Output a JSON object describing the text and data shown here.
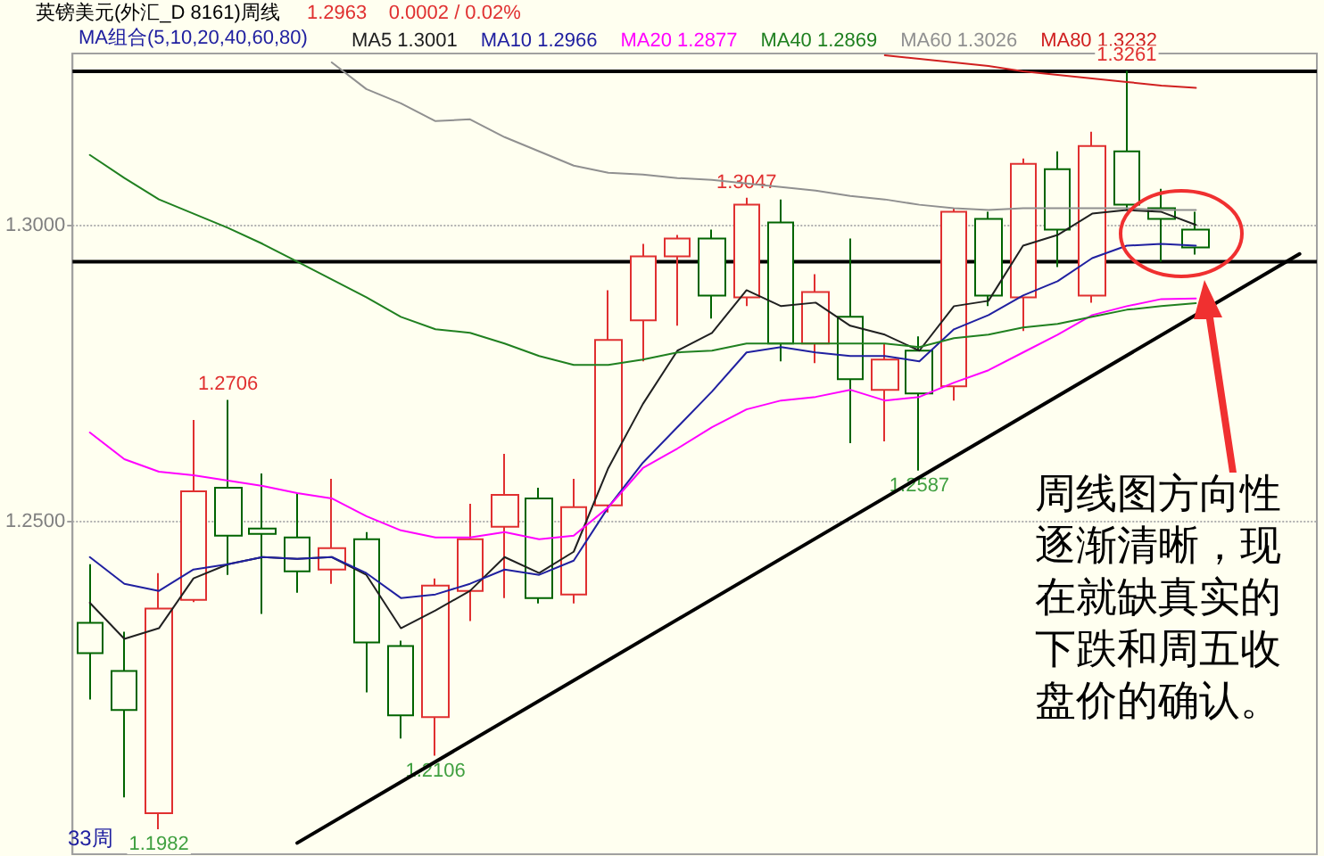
{
  "chart_data": {
    "type": "candlestick",
    "title": "英镑美元(外汇_D 8161)周线",
    "subtitle": "1.2963    0.0002 / 0.02%",
    "legend_title": "MA组合(5,10,20,40,60,80)",
    "categories": [
      null,
      null,
      null,
      null,
      null,
      null,
      null,
      null,
      null,
      null,
      null,
      null,
      null,
      null,
      null,
      null,
      null,
      null,
      null,
      null,
      null,
      null,
      null,
      null,
      null,
      null,
      null,
      null,
      null,
      null,
      null,
      null,
      null,
      null,
      null,
      null
    ],
    "ohlc": [
      [
        1.233,
        1.2429,
        1.2201,
        1.2279
      ],
      [
        1.2249,
        1.2315,
        1.2036,
        1.2183
      ],
      [
        1.2009,
        1.2414,
        1.1982,
        1.2354
      ],
      [
        1.2369,
        1.2672,
        1.2365,
        1.2552
      ],
      [
        1.2558,
        1.2706,
        1.2411,
        1.2477
      ],
      [
        1.2489,
        1.2582,
        1.2345,
        1.248
      ],
      [
        1.2474,
        1.2549,
        1.2381,
        1.2417
      ],
      [
        1.242,
        1.2573,
        1.2396,
        1.2456
      ],
      [
        1.2471,
        1.2483,
        1.2213,
        1.2297
      ],
      [
        1.2291,
        1.23,
        1.2135,
        1.2174
      ],
      [
        1.2171,
        1.2405,
        1.2106,
        1.2393
      ],
      [
        1.2384,
        1.2531,
        1.2333,
        1.2471
      ],
      [
        1.2492,
        1.2615,
        1.2372,
        1.2546
      ],
      [
        1.254,
        1.2558,
        1.2363,
        1.2372
      ],
      [
        1.2378,
        1.2573,
        1.2363,
        1.2525
      ],
      [
        1.2528,
        1.2891,
        1.2516,
        1.2807
      ],
      [
        1.284,
        1.2969,
        1.2771,
        1.2948
      ],
      [
        1.2948,
        1.2984,
        1.2831,
        1.2978
      ],
      [
        1.2978,
        1.2993,
        1.2843,
        1.2882
      ],
      [
        1.2879,
        1.3047,
        1.2864,
        1.3035
      ],
      [
        1.3005,
        1.3044,
        1.2771,
        1.2801
      ],
      [
        1.2801,
        1.2918,
        1.2768,
        1.2888
      ],
      [
        1.2846,
        1.2978,
        1.2633,
        1.2741
      ],
      [
        1.2723,
        1.2801,
        1.2636,
        1.2774
      ],
      [
        1.2789,
        1.2813,
        1.2587,
        1.2717
      ],
      [
        1.2729,
        1.3029,
        1.2705,
        1.3023
      ],
      [
        1.3011,
        1.3023,
        1.2864,
        1.2882
      ],
      [
        1.2879,
        1.3113,
        1.2822,
        1.3104
      ],
      [
        1.3095,
        1.3125,
        1.293,
        1.2993
      ],
      [
        1.2882,
        1.3158,
        1.287,
        1.3134
      ],
      [
        1.3125,
        1.3261,
        1.3026,
        1.3035
      ],
      [
        1.3029,
        1.3062,
        1.2939,
        1.3011
      ],
      [
        1.2993,
        1.3023,
        1.2951,
        1.2963
      ],
      null,
      null,
      null
    ],
    "colors": [
      "#006400",
      "#006400",
      "#e03030",
      "#e03030",
      "#006400",
      "#006400",
      "#006400",
      "#e03030",
      "#006400",
      "#006400",
      "#e03030",
      "#e03030",
      "#e03030",
      "#006400",
      "#e03030",
      "#e03030",
      "#e03030",
      "#e03030",
      "#006400",
      "#e03030",
      "#006400",
      "#e03030",
      "#006400",
      "#e03030",
      "#006400",
      "#e03030",
      "#006400",
      "#e03030",
      "#006400",
      "#e03030",
      "#006400",
      "#006400",
      "#006400",
      null,
      null,
      null
    ],
    "series": [
      {
        "type": "line",
        "name": "MA5 1.3001",
        "color": "#202020",
        "values": [
          1.2364,
          1.2303,
          1.2321,
          1.2405,
          1.2429,
          1.2441,
          1.2438,
          1.2441,
          1.2411,
          1.2321,
          1.2351,
          1.2384,
          1.2441,
          1.2414,
          1.245,
          1.2591,
          1.2699,
          1.2789,
          1.2819,
          1.2891,
          1.2864,
          1.287,
          1.2831,
          1.2816,
          1.2789,
          1.2864,
          1.2873,
          1.2966,
          1.2984,
          1.302,
          1.3026,
          1.3023,
          1.3001,
          null,
          null,
          null
        ]
      },
      {
        "type": "line",
        "name": "MA10 1.2966",
        "color": "#2020a0",
        "values": [
          1.2441,
          1.2396,
          1.2384,
          1.242,
          1.2429,
          1.2441,
          1.2438,
          1.2441,
          1.2414,
          1.2372,
          1.2378,
          1.2396,
          1.242,
          1.2411,
          1.2435,
          1.2525,
          1.26,
          1.266,
          1.272,
          1.2786,
          1.2795,
          1.2786,
          1.278,
          1.278,
          1.2771,
          1.2825,
          1.2849,
          1.2882,
          1.2906,
          1.2945,
          1.2966,
          1.2969,
          1.2966,
          null,
          null,
          null
        ]
      },
      {
        "type": "line",
        "name": "MA20 1.2877",
        "color": "#ff00ff",
        "values": [
          1.2651,
          1.2606,
          1.2585,
          1.2579,
          1.257,
          1.2561,
          1.2549,
          1.254,
          1.251,
          1.2486,
          1.2474,
          1.2474,
          1.2483,
          1.2471,
          1.2477,
          1.2525,
          1.2591,
          1.2624,
          1.266,
          1.269,
          1.2705,
          1.2711,
          1.2723,
          1.2705,
          1.2711,
          1.2735,
          1.2756,
          1.2786,
          1.2816,
          1.2849,
          1.2864,
          1.2876,
          1.2877,
          null,
          null,
          null
        ]
      },
      {
        "type": "line",
        "name": "MA40 1.2869",
        "color": "#208020",
        "values": [
          1.3119,
          1.308,
          1.3044,
          1.302,
          1.2996,
          1.2969,
          1.2939,
          1.2909,
          1.2879,
          1.2846,
          1.2825,
          1.2819,
          1.2801,
          1.278,
          1.2765,
          1.2765,
          1.2774,
          1.2786,
          1.2789,
          1.2801,
          1.2801,
          1.2801,
          1.2801,
          1.2801,
          1.2795,
          1.281,
          1.2816,
          1.2828,
          1.2834,
          1.2846,
          1.2858,
          1.2864,
          1.2869,
          null,
          null,
          null
        ]
      },
      {
        "type": "line",
        "name": "MA60 1.3026",
        "color": "#909090",
        "values": [
          null,
          null,
          null,
          null,
          null,
          null,
          null,
          1.3275,
          1.323,
          1.3206,
          1.3176,
          1.3179,
          1.3149,
          1.3125,
          1.3101,
          1.3089,
          1.3086,
          1.308,
          1.3077,
          1.3071,
          1.3065,
          1.3059,
          1.305,
          1.3044,
          1.3035,
          1.3029,
          1.3026,
          1.3029,
          1.3029,
          1.3029,
          1.3029,
          1.3026,
          1.3026,
          null,
          null,
          null
        ]
      },
      {
        "type": "line",
        "name": "MA80 1.3232",
        "color": "#d02020",
        "values": [
          null,
          null,
          null,
          null,
          null,
          null,
          null,
          null,
          null,
          null,
          null,
          null,
          null,
          null,
          null,
          null,
          null,
          null,
          null,
          null,
          null,
          null,
          null,
          1.3287,
          1.3281,
          1.3275,
          1.3269,
          1.326,
          1.3254,
          1.3248,
          1.3242,
          1.3236,
          1.3232,
          null,
          null,
          null
        ]
      },
      {
        "type": "line",
        "color": "#000000",
        "values": [
          null,
          null,
          null,
          null,
          null,
          null,
          1.1959,
          null,
          null,
          null,
          null,
          null,
          null,
          null,
          null,
          null,
          null,
          null,
          null,
          null,
          null,
          null,
          null,
          null,
          null,
          null,
          null,
          null,
          null,
          null,
          null,
          null,
          null,
          null,
          null,
          1.2952
        ]
      }
    ],
    "ylim": [
      1.194,
      1.329
    ],
    "yticks": [
      {
        "value": 1.25,
        "label": "1.2500"
      },
      {
        "value": 1.3,
        "label": "1.3000"
      }
    ],
    "tick_labels": "y",
    "grid": "y",
    "legend": "top left",
    "marker": "none",
    "ref_lines": [
      {
        "axis": "y",
        "value": 1.326,
        "color": "#000000"
      },
      {
        "axis": "y",
        "value": 1.2939,
        "color": "#000000"
      }
    ],
    "annotations": [
      {
        "text": "1.3261",
        "y": 1.3261
      },
      {
        "text": "1.3047",
        "y": 1.3047
      },
      {
        "text": "1.2706",
        "y": 1.2706
      },
      {
        "text": "1.2587",
        "y": 1.2587
      },
      {
        "text": "1.2106",
        "y": 1.2106
      },
      {
        "text": "1.1982",
        "y": 1.1982
      },
      "33周",
      "周线图方向性逐渐清晰，现在就缺真实的下跌和周五收盘价的确认。"
    ]
  }
}
